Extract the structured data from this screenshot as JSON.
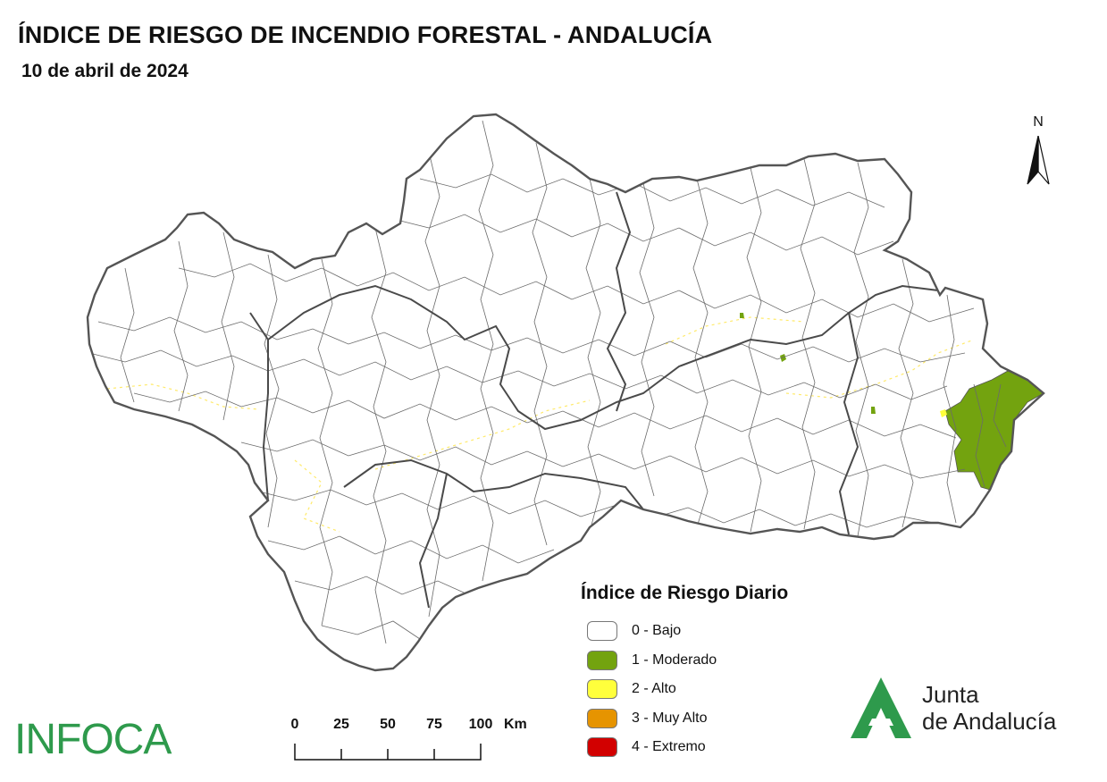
{
  "header": {
    "title": "ÍNDICE DE RIESGO DE INCENDIO FORESTAL - ANDALUCÍA",
    "date": "10 de abril de 2024"
  },
  "north_arrow": {
    "label": "N"
  },
  "legend": {
    "title": "Índice de Riesgo Diario",
    "items": [
      {
        "label": "0 - Bajo",
        "color": "#ffffff"
      },
      {
        "label": "1 - Moderado",
        "color": "#73a30f"
      },
      {
        "label": "2 - Alto",
        "color": "#ffff3c"
      },
      {
        "label": "3 - Muy Alto",
        "color": "#e69400"
      },
      {
        "label": "4 - Extremo",
        "color": "#d20000"
      }
    ]
  },
  "scale_bar": {
    "ticks": [
      "0",
      "25",
      "50",
      "75",
      "100"
    ],
    "unit": "Km"
  },
  "logos": {
    "infoca": "INFOCA",
    "junta_line1": "Junta",
    "junta_line2": "de Andalucía"
  },
  "colors": {
    "boundary": "#555555",
    "moderado": "#73a30f",
    "alto": "#ffff3c",
    "brand_green": "#2e9a4c"
  }
}
